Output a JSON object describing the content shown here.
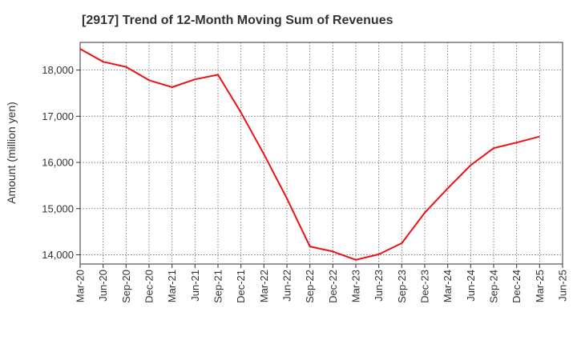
{
  "chart_data": {
    "type": "line",
    "title": "[2917]  Trend of 12-Month Moving Sum of Revenues",
    "ylabel": "Amount (million yen)",
    "xlabel": "",
    "ylim": [
      13800,
      18600
    ],
    "y_ticks": [
      14000,
      15000,
      16000,
      17000,
      18000
    ],
    "y_tick_labels": [
      "14,000",
      "15,000",
      "16,000",
      "17,000",
      "18,000"
    ],
    "x_tick_labels": [
      "Mar-20",
      "Jun-20",
      "Sep-20",
      "Dec-20",
      "Mar-21",
      "Jun-21",
      "Sep-21",
      "Dec-21",
      "Mar-22",
      "Jun-22",
      "Sep-22",
      "Dec-22",
      "Mar-23",
      "Jun-23",
      "Sep-23",
      "Dec-23",
      "Mar-24",
      "Jun-24",
      "Sep-24",
      "Dec-24",
      "Mar-25",
      "Jun-25"
    ],
    "grid": true,
    "line_color": "#ee1111",
    "series": [
      {
        "x": [
          "Mar-20",
          "Jun-20",
          "Sep-20",
          "Dec-20",
          "Mar-21",
          "Jun-21",
          "Sep-21",
          "Dec-21",
          "Mar-22",
          "Jun-22",
          "Sep-22",
          "Dec-22",
          "Mar-23",
          "Jun-23",
          "Sep-23",
          "Dec-23",
          "Mar-24",
          "Jun-24",
          "Sep-24",
          "Dec-24",
          "Mar-25"
        ],
        "values": [
          18460,
          18180,
          18070,
          17780,
          17630,
          17800,
          17900,
          17080,
          16180,
          15220,
          14180,
          14070,
          13890,
          14010,
          14250,
          14910,
          15440,
          15940,
          16310,
          16430,
          16560
        ]
      }
    ]
  }
}
